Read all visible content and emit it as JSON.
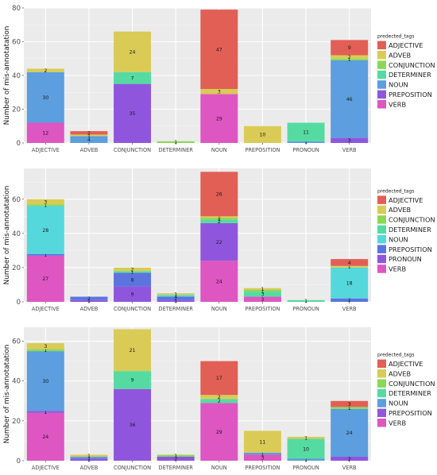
{
  "chart_data": [
    {
      "type": "bar",
      "stacked": true,
      "ylabel": "Number of mis-annotatation",
      "xlabel": "",
      "ylim": [
        0,
        80
      ],
      "yticks": [
        0,
        20,
        40,
        60,
        80
      ],
      "grid": true,
      "legend_title": "predected_tags",
      "legend_position": "right",
      "categories": [
        "ADJECTIVE",
        "ADVEB",
        "CONJUNCTION",
        "DETERMINER",
        "NOUN",
        "PREPOSITION",
        "PRONOUN",
        "VERB"
      ],
      "series": [
        {
          "name": "ADJECTIVE",
          "color": "#E15F55",
          "values": [
            0,
            2,
            0,
            0,
            47,
            0,
            0,
            9
          ]
        },
        {
          "name": "ADVEB",
          "color": "#D9CB56",
          "values": [
            2,
            1,
            24,
            0,
            3,
            10,
            0,
            2
          ]
        },
        {
          "name": "CONJUNCTION",
          "color": "#8BD857",
          "values": [
            0,
            0,
            0,
            1,
            0,
            0,
            0,
            1
          ]
        },
        {
          "name": "DETERMINER",
          "color": "#55DBA2",
          "values": [
            0,
            0,
            7,
            0,
            0,
            0,
            11,
            0
          ]
        },
        {
          "name": "NOUN",
          "color": "#5C9EDE",
          "values": [
            30,
            4,
            0,
            0,
            0,
            0,
            1,
            46
          ]
        },
        {
          "name": "PREPOSITION",
          "color": "#8F56DD",
          "values": [
            0,
            0,
            35,
            0,
            0,
            0,
            0,
            3
          ]
        },
        {
          "name": "VERB",
          "color": "#DE56C2",
          "values": [
            12,
            0,
            0,
            0,
            29,
            0,
            0,
            0
          ]
        }
      ]
    },
    {
      "type": "bar",
      "stacked": true,
      "ylabel": "Number of mis-annotatation",
      "xlabel": "",
      "ylim": [
        0,
        78
      ],
      "yticks": [
        0,
        20,
        40,
        60
      ],
      "grid": true,
      "legend_title": "predected_tags",
      "legend_position": "right",
      "categories": [
        "ADJECTIVE",
        "ADVEB",
        "CONJUNCTION",
        "DETERMINER",
        "NOUN",
        "PREPOSITION",
        "PRONOUN",
        "VERB"
      ],
      "series": [
        {
          "name": "ADJECTIVE",
          "color": "#E15F55",
          "values": [
            0,
            0,
            0,
            0,
            26,
            0,
            0,
            4
          ]
        },
        {
          "name": "ADVEB",
          "color": "#D9CB56",
          "values": [
            3,
            0,
            2,
            1,
            1,
            1,
            0,
            1
          ]
        },
        {
          "name": "CONJUNCTION",
          "color": "#8BD857",
          "values": [
            1,
            0,
            0,
            0,
            1,
            1,
            0,
            0
          ]
        },
        {
          "name": "DETERMINER",
          "color": "#55DBA2",
          "values": [
            0,
            0,
            1,
            0,
            2,
            3,
            1,
            0
          ]
        },
        {
          "name": "NOUN",
          "color": "#55D8DC",
          "values": [
            28,
            0,
            0,
            1,
            0,
            0,
            0,
            18
          ]
        },
        {
          "name": "PREPOSITION",
          "color": "#5C74DE",
          "values": [
            1,
            2,
            8,
            2,
            0,
            0,
            0,
            2
          ]
        },
        {
          "name": "PRONOUN",
          "color": "#8F56DD",
          "values": [
            0,
            1,
            9,
            1,
            22,
            0,
            0,
            0
          ]
        },
        {
          "name": "VERB",
          "color": "#DE56C2",
          "values": [
            27,
            0,
            0,
            0,
            24,
            3,
            0,
            0
          ]
        }
      ]
    },
    {
      "type": "bar",
      "stacked": true,
      "ylabel": "Number of mis-annotatation",
      "xlabel": "",
      "ylim": [
        0,
        67
      ],
      "yticks": [
        0,
        20,
        40,
        60
      ],
      "grid": true,
      "legend_title": "predected_tags",
      "legend_position": "right",
      "categories": [
        "ADJECTIVE",
        "ADVEB",
        "CONJUNCTION",
        "DETERMINER",
        "NOUN",
        "PREPOSITION",
        "PRONOUN",
        "VERB"
      ],
      "series": [
        {
          "name": "ADJECTIVE",
          "color": "#E15F55",
          "values": [
            0,
            0,
            0,
            0,
            17,
            0,
            0,
            3
          ]
        },
        {
          "name": "ADVEB",
          "color": "#D9CB56",
          "values": [
            3,
            1,
            21,
            0,
            2,
            11,
            1,
            0
          ]
        },
        {
          "name": "CONJUNCTION",
          "color": "#8BD857",
          "values": [
            1,
            0,
            0,
            1,
            0,
            0,
            0,
            1
          ]
        },
        {
          "name": "DETERMINER",
          "color": "#55DBA2",
          "values": [
            0,
            0,
            9,
            0,
            2,
            0,
            10,
            0
          ]
        },
        {
          "name": "NOUN",
          "color": "#5C9EDE",
          "values": [
            30,
            1,
            0,
            0,
            0,
            1,
            1,
            24
          ]
        },
        {
          "name": "PREPOSITION",
          "color": "#8F56DD",
          "values": [
            1,
            1,
            36,
            2,
            0,
            0,
            0,
            2
          ]
        },
        {
          "name": "VERB",
          "color": "#DE56C2",
          "values": [
            24,
            0,
            0,
            0,
            29,
            3,
            0,
            0
          ]
        }
      ]
    }
  ]
}
